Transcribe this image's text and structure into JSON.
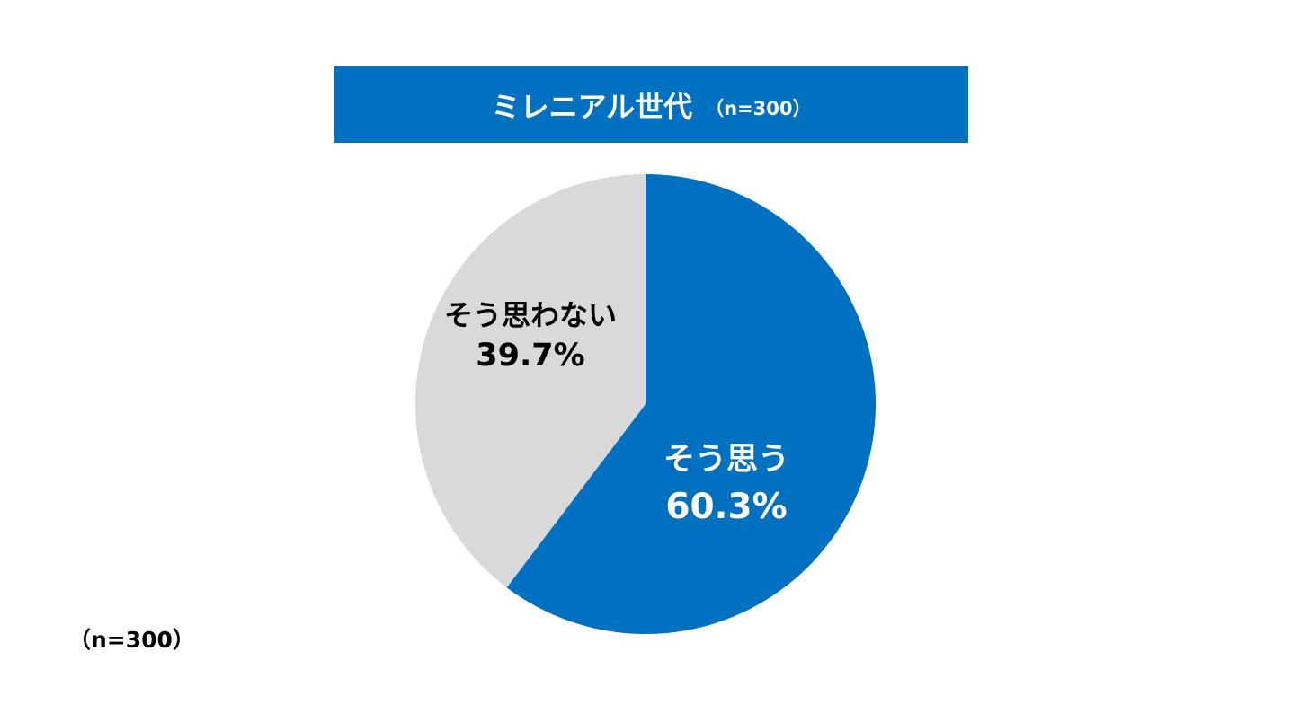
{
  "chart_data": {
    "type": "pie",
    "title": "ミレニアル世代",
    "subtitle": "（n=300）",
    "slices": [
      {
        "label": "そう思う",
        "value": 60.3,
        "value_label": "60.3%",
        "color": "#0070C0",
        "text_color": "#ffffff"
      },
      {
        "label": "そう思わない",
        "value": 39.7,
        "value_label": "39.7%",
        "color": "#D9D9D9",
        "text_color": "#000000"
      }
    ],
    "start_angle": "12 o'clock",
    "direction": "clockwise"
  },
  "footnote": "（n=300）",
  "colors": {
    "accent": "#0070C0",
    "secondary": "#D9D9D9",
    "background": "#ffffff"
  }
}
